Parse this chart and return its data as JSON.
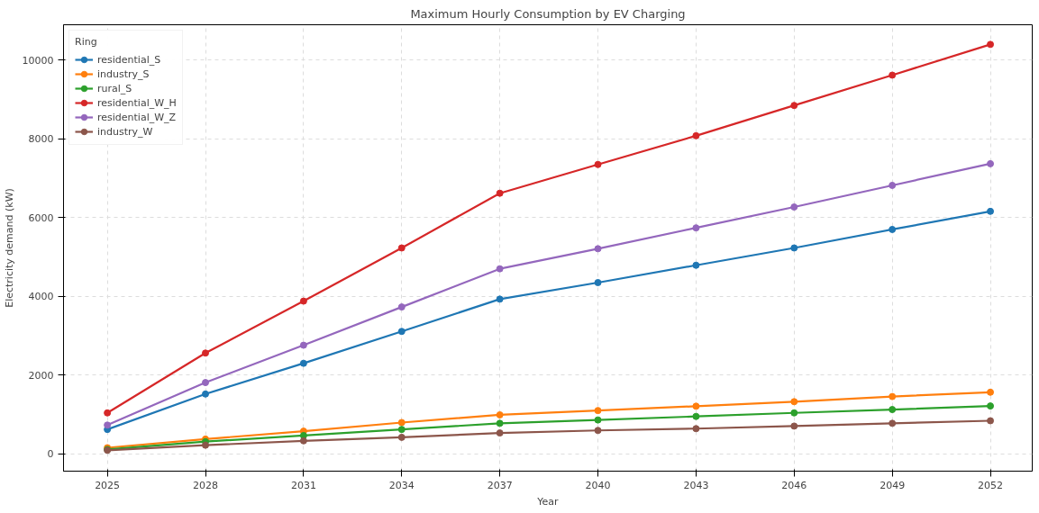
{
  "chart_data": {
    "type": "line",
    "title": "Maximum Hourly Consumption by EV Charging",
    "xlabel": "Year",
    "ylabel": "Electricity demand (kW)",
    "legend_title": "Ring",
    "legend": "top left",
    "grid": true,
    "marker": "circle",
    "line_style": "solid",
    "x": [
      2025,
      2028,
      2031,
      2034,
      2037,
      2040,
      2043,
      2046,
      2049,
      2052
    ],
    "xlim": [
      2023.66,
      2053.28
    ],
    "xticks": [
      2025,
      2028,
      2031,
      2034,
      2037,
      2040,
      2043,
      2046,
      2049,
      2052
    ],
    "ylim": [
      -440,
      10900
    ],
    "yticks": [
      0,
      2000,
      4000,
      6000,
      8000,
      10000
    ],
    "series": [
      {
        "name": "residential_S",
        "color": "#1f77b4",
        "values": [
          620,
          1520,
          2300,
          3110,
          3930,
          4350,
          4790,
          5230,
          5700,
          6160
        ]
      },
      {
        "name": "industry_S",
        "color": "#ff7f0e",
        "values": [
          155,
          375,
          575,
          795,
          990,
          1100,
          1210,
          1325,
          1455,
          1565
        ]
      },
      {
        "name": "rural_S",
        "color": "#2ca02c",
        "values": [
          110,
          310,
          465,
          620,
          775,
          860,
          950,
          1040,
          1125,
          1215
        ]
      },
      {
        "name": "residential_W_H",
        "color": "#d62728",
        "values": [
          1040,
          2560,
          3880,
          5230,
          6620,
          7350,
          8080,
          8850,
          9620,
          10400
        ]
      },
      {
        "name": "residential_W_Z",
        "color": "#9467bd",
        "values": [
          730,
          1810,
          2760,
          3730,
          4700,
          5210,
          5740,
          6270,
          6820,
          7370
        ]
      },
      {
        "name": "industry_W",
        "color": "#8c564b",
        "values": [
          90,
          220,
          330,
          420,
          530,
          595,
          640,
          705,
          775,
          840
        ]
      }
    ]
  }
}
